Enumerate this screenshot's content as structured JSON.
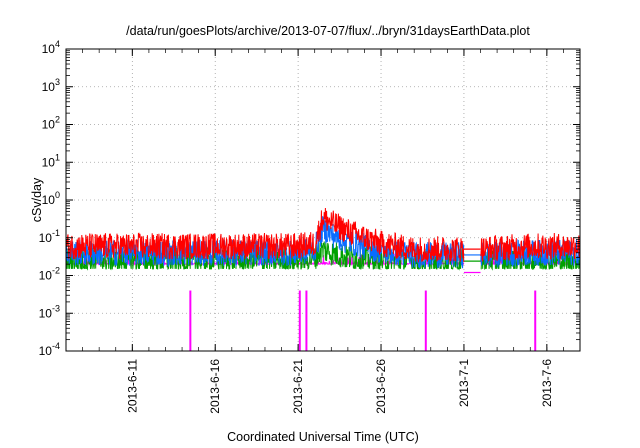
{
  "chart_data": {
    "type": "line",
    "title": "/data/run/goesPlots/archive/2013-07-07/flux/../bryn/31daysEarthData.plot",
    "xlabel": "Coordinated Universal Time (UTC)",
    "ylabel": "cSv/day",
    "yscale": "log",
    "ylim": [
      0.0001,
      10000
    ],
    "yticks": [
      {
        "base": "10",
        "exp": "-4",
        "value": 0.0001
      },
      {
        "base": "10",
        "exp": "-3",
        "value": 0.001
      },
      {
        "base": "10",
        "exp": "-2",
        "value": 0.01
      },
      {
        "base": "10",
        "exp": "-1",
        "value": 0.1
      },
      {
        "base": "10",
        "exp": "0",
        "value": 1
      },
      {
        "base": "10",
        "exp": "1",
        "value": 10
      },
      {
        "base": "10",
        "exp": "2",
        "value": 100
      },
      {
        "base": "10",
        "exp": "3",
        "value": 1000
      },
      {
        "base": "10",
        "exp": "4",
        "value": 10000
      }
    ],
    "xlim": [
      "2013-06-07",
      "2013-07-08"
    ],
    "xticks": [
      "2013-6-11",
      "2013-6-16",
      "2013-6-21",
      "2013-6-26",
      "2013-7-1",
      "2013-7-6"
    ],
    "grid": true,
    "data_gap": [
      "2013-07-01",
      "2013-07-02"
    ],
    "series": [
      {
        "color": "#ff0000",
        "x": [
          "2013-06-07",
          "2013-06-12",
          "2013-06-17",
          "2013-06-21",
          "2013-06-22",
          "2013-06-22.5",
          "2013-06-23",
          "2013-06-24",
          "2013-06-25",
          "2013-06-26",
          "2013-06-28",
          "2013-07-01",
          "2013-07-02",
          "2013-07-05",
          "2013-07-08"
        ],
        "y": [
          0.06,
          0.06,
          0.06,
          0.06,
          0.07,
          0.35,
          0.25,
          0.15,
          0.1,
          0.07,
          0.05,
          0.05,
          0.05,
          0.06,
          0.06
        ]
      },
      {
        "color": "#0a6cff",
        "x": [
          "2013-06-07",
          "2013-06-12",
          "2013-06-17",
          "2013-06-21",
          "2013-06-22",
          "2013-06-22.5",
          "2013-06-23",
          "2013-06-24",
          "2013-06-25",
          "2013-06-26",
          "2013-06-28",
          "2013-07-01",
          "2013-07-02",
          "2013-07-05",
          "2013-07-08"
        ],
        "y": [
          0.04,
          0.04,
          0.04,
          0.04,
          0.05,
          0.18,
          0.12,
          0.08,
          0.06,
          0.045,
          0.035,
          0.035,
          0.035,
          0.04,
          0.04
        ]
      },
      {
        "color": "#00a000",
        "x": [
          "2013-06-07",
          "2013-06-12",
          "2013-06-17",
          "2013-06-21",
          "2013-06-22",
          "2013-06-22.5",
          "2013-06-23",
          "2013-06-24",
          "2013-06-25",
          "2013-06-26",
          "2013-06-28",
          "2013-07-01",
          "2013-07-02",
          "2013-07-05",
          "2013-07-08"
        ],
        "y": [
          0.025,
          0.025,
          0.025,
          0.025,
          0.03,
          0.05,
          0.04,
          0.03,
          0.028,
          0.025,
          0.024,
          0.024,
          0.024,
          0.025,
          0.025
        ]
      },
      {
        "color": "#ff00ff",
        "x": [
          "2013-06-07",
          "2013-06-12",
          "2013-06-17",
          "2013-06-21",
          "2013-06-22",
          "2013-06-22.5",
          "2013-06-23",
          "2013-06-24",
          "2013-06-25",
          "2013-06-26",
          "2013-06-28",
          "2013-07-01",
          "2013-07-02",
          "2013-07-05",
          "2013-07-08"
        ],
        "y": [
          0.012,
          0.012,
          0.012,
          0.012,
          0.012,
          0.012,
          0.011,
          0.011,
          0.012,
          0.012,
          0.012,
          0.012,
          0.012,
          0.012,
          0.012
        ]
      }
    ],
    "dropouts": [
      {
        "x": "2013-06-14.5",
        "y": 0.0001
      },
      {
        "x": "2013-06-21.1",
        "y": 0.0001
      },
      {
        "x": "2013-06-21.5",
        "y": 0.0001
      },
      {
        "x": "2013-06-28.7",
        "y": 0.0001
      },
      {
        "x": "2013-07-05.3",
        "y": 0.0001
      }
    ]
  }
}
